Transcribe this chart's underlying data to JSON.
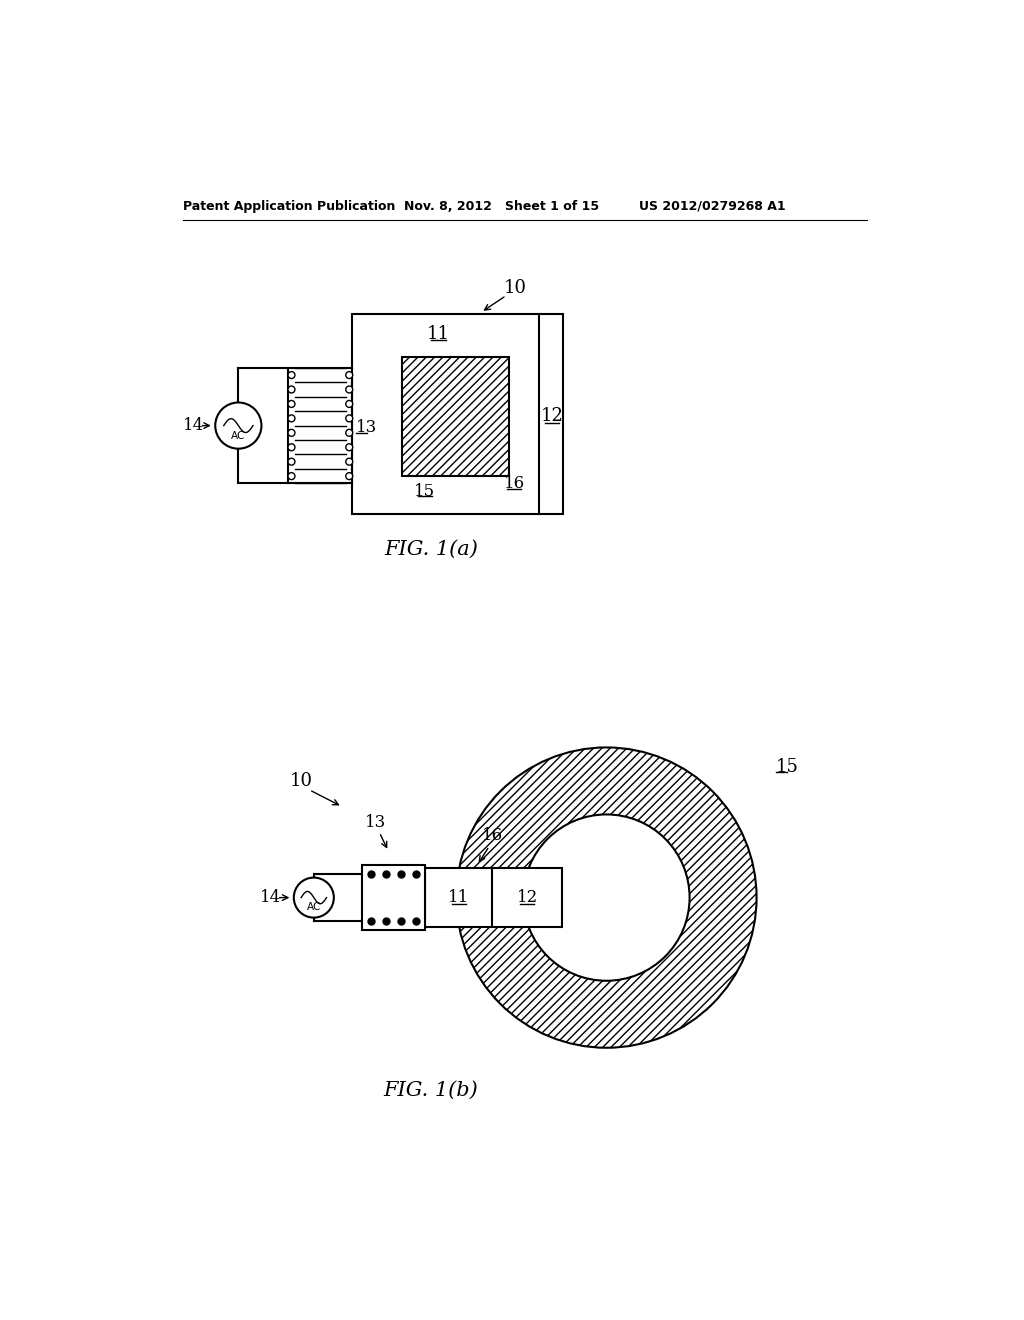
{
  "bg_color": "#ffffff",
  "header_left": "Patent Application Publication",
  "header_mid": "Nov. 8, 2012   Sheet 1 of 15",
  "header_right": "US 2012/0279268 A1",
  "fig_a_caption": "FIG. 1(a)",
  "fig_b_caption": "FIG. 1(b)"
}
